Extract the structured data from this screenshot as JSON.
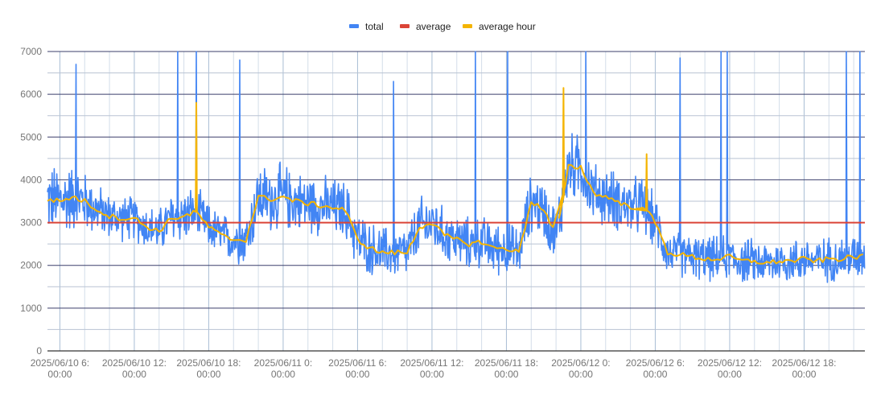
{
  "chart_data": {
    "type": "line",
    "title": "",
    "legend_position": "top-center",
    "series": [
      {
        "name": "total",
        "color": "#4285F4"
      },
      {
        "name": "average",
        "color": "#DB4437",
        "value": 3000
      },
      {
        "name": "average hour",
        "color": "#F4B400"
      }
    ],
    "x_start": "2025/06/10 05:00",
    "x_unit": "hours since x_start",
    "xlim": [
      0,
      65.9
    ],
    "ylim": [
      0,
      7000
    ],
    "y_ticks": [
      "0",
      "1000",
      "2000",
      "3000",
      "4000",
      "5000",
      "6000",
      "7000"
    ],
    "y_tick_values": [
      0,
      1000,
      2000,
      3000,
      4000,
      5000,
      6000,
      7000
    ],
    "x_ticks": [
      {
        "hour": 1,
        "line1": "2025/06/10 6:",
        "line2": "00:00"
      },
      {
        "hour": 7,
        "line1": "2025/06/10 12:",
        "line2": "00:00"
      },
      {
        "hour": 13,
        "line1": "2025/06/10 18:",
        "line2": "00:00"
      },
      {
        "hour": 19,
        "line1": "2025/06/11 0:",
        "line2": "00:00"
      },
      {
        "hour": 25,
        "line1": "2025/06/11 6:",
        "line2": "00:00"
      },
      {
        "hour": 31,
        "line1": "2025/06/11 12:",
        "line2": "00:00"
      },
      {
        "hour": 37,
        "line1": "2025/06/11 18:",
        "line2": "00:00"
      },
      {
        "hour": 43,
        "line1": "2025/06/12 0:",
        "line2": "00:00"
      },
      {
        "hour": 49,
        "line1": "2025/06/12 6:",
        "line2": "00:00"
      },
      {
        "hour": 55,
        "line1": "2025/06/12 12:",
        "line2": "00:00"
      },
      {
        "hour": 61,
        "line1": "2025/06/12 18:",
        "line2": "00:00"
      }
    ],
    "average_hour": [
      3550,
      3500,
      3600,
      3500,
      3300,
      3150,
      3100,
      3100,
      2900,
      2800,
      3100,
      3150,
      3250,
      2900,
      2700,
      2600,
      2600,
      3600,
      3550,
      3600,
      3500,
      3450,
      3400,
      3350,
      3300,
      2600,
      2400,
      2300,
      2300,
      2300,
      2900,
      3000,
      2700,
      2600,
      2500,
      2550,
      2400,
      2400,
      2300,
      3500,
      3300,
      2700,
      4300,
      4300,
      3700,
      3600,
      3500,
      3350,
      3400,
      3000,
      2300,
      2250,
      2200,
      2150,
      2150,
      2200,
      2100,
      2100,
      2050,
      2100,
      2100,
      2150,
      2100,
      2150,
      2150,
      2200,
      2200
    ],
    "average_hour_spikes": [
      {
        "hour": 12.0,
        "value": 5800
      },
      {
        "hour": 41.6,
        "value": 6150
      },
      {
        "hour": 48.3,
        "value": 4600
      }
    ],
    "total_spread": [
      900,
      1000,
      900,
      800,
      700,
      600,
      600,
      600,
      600,
      600,
      700,
      700,
      700,
      600,
      600,
      600,
      700,
      900,
      900,
      900,
      800,
      800,
      800,
      800,
      800,
      800,
      700,
      700,
      700,
      700,
      800,
      800,
      700,
      700,
      700,
      700,
      700,
      700,
      700,
      800,
      800,
      800,
      900,
      900,
      800,
      800,
      800,
      800,
      800,
      700,
      600,
      600,
      600,
      600,
      600,
      600,
      600,
      600,
      600,
      600,
      600,
      600,
      600,
      600,
      600,
      600,
      600
    ],
    "total_spikes": [
      {
        "hour": 2.3,
        "value": 6700
      },
      {
        "hour": 10.5,
        "value": 7000
      },
      {
        "hour": 12.0,
        "value": 7000
      },
      {
        "hour": 15.5,
        "value": 6800
      },
      {
        "hour": 27.9,
        "value": 6300
      },
      {
        "hour": 34.5,
        "value": 7000
      },
      {
        "hour": 37.1,
        "value": 7000
      },
      {
        "hour": 43.4,
        "value": 7000
      },
      {
        "hour": 51.0,
        "value": 6850
      },
      {
        "hour": 54.3,
        "value": 7000
      },
      {
        "hour": 54.8,
        "value": 7000
      },
      {
        "hour": 64.4,
        "value": 7000
      },
      {
        "hour": 65.5,
        "value": 7000
      }
    ]
  }
}
